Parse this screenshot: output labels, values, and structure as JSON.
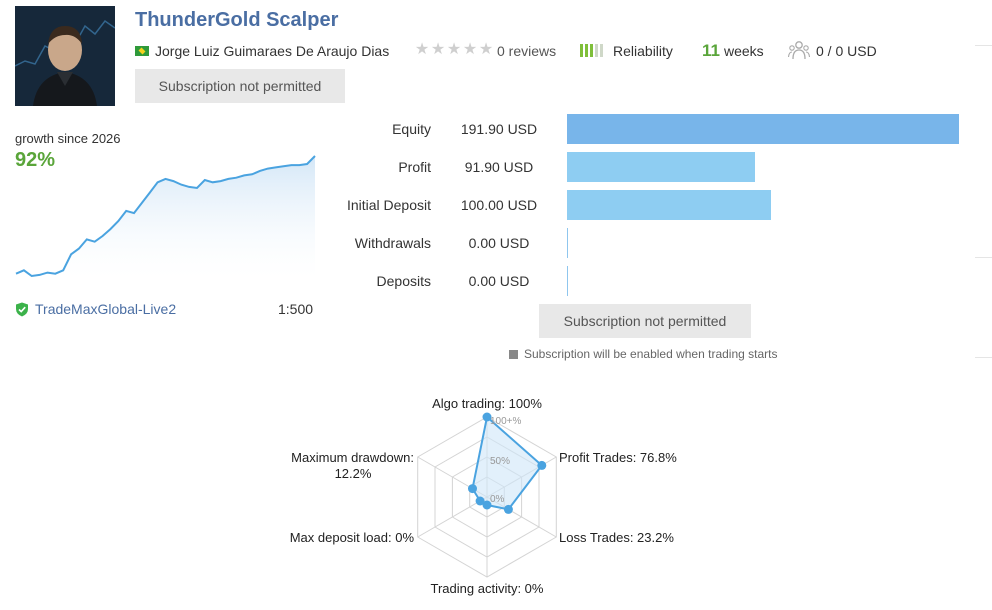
{
  "header": {
    "title": "ThunderGold Scalper",
    "author": "Jorge Luiz Guimaraes De Araujo Dias",
    "author_country": "Brazil",
    "rating_stars": 0,
    "reviews": "0 reviews",
    "reliability_label": "Reliability",
    "reliability_level": 3,
    "weeks_value": "11",
    "weeks_label": "weeks",
    "subscribers": "0 / 0 USD",
    "subscribe_button": "Subscription not permitted"
  },
  "growth": {
    "label": "growth since 2026",
    "value": "92%",
    "sparkline": [
      5,
      8,
      3,
      4,
      6,
      5,
      8,
      22,
      27,
      35,
      33,
      38,
      44,
      51,
      60,
      58,
      67,
      76,
      85,
      88,
      86,
      83,
      81,
      80,
      87,
      85,
      86,
      88,
      89,
      91,
      92,
      95,
      97,
      98,
      99,
      100,
      100,
      101,
      108
    ]
  },
  "account": {
    "server": "TradeMaxGlobal-Live2",
    "leverage": "1:500"
  },
  "stats": [
    {
      "label": "Equity",
      "value": "191.90 USD",
      "amount": 191.9
    },
    {
      "label": "Profit",
      "value": "91.90 USD",
      "amount": 91.9
    },
    {
      "label": "Initial Deposit",
      "value": "100.00 USD",
      "amount": 100.0
    },
    {
      "label": "Withdrawals",
      "value": "0.00 USD",
      "amount": 0
    },
    {
      "label": "Deposits",
      "value": "0.00 USD",
      "amount": 0
    }
  ],
  "subscribe_button_2": "Subscription not permitted",
  "subscription_note": "Subscription will be enabled when trading starts",
  "radar": {
    "axes": [
      {
        "label": "Algo trading: 100%",
        "value": 100
      },
      {
        "label": "Profit Trades: 76.8%",
        "value": 76.8
      },
      {
        "label": "Loss Trades: 23.2%",
        "value": 23.2
      },
      {
        "label": "Trading activity: 0%",
        "value": 0
      },
      {
        "label": "Max deposit load: 0%",
        "value": 0
      },
      {
        "label_line1": "Maximum drawdown:",
        "label_line2": "12.2%",
        "value": 12.2
      }
    ],
    "grid_labels": [
      "100+%",
      "50%",
      "0%"
    ]
  },
  "colors": {
    "title": "#4a6ea3",
    "green": "#5aa53a",
    "equity_bar": "#78b5ea",
    "bar": "#8ecdf2",
    "radar_line": "#4aa3e0"
  }
}
